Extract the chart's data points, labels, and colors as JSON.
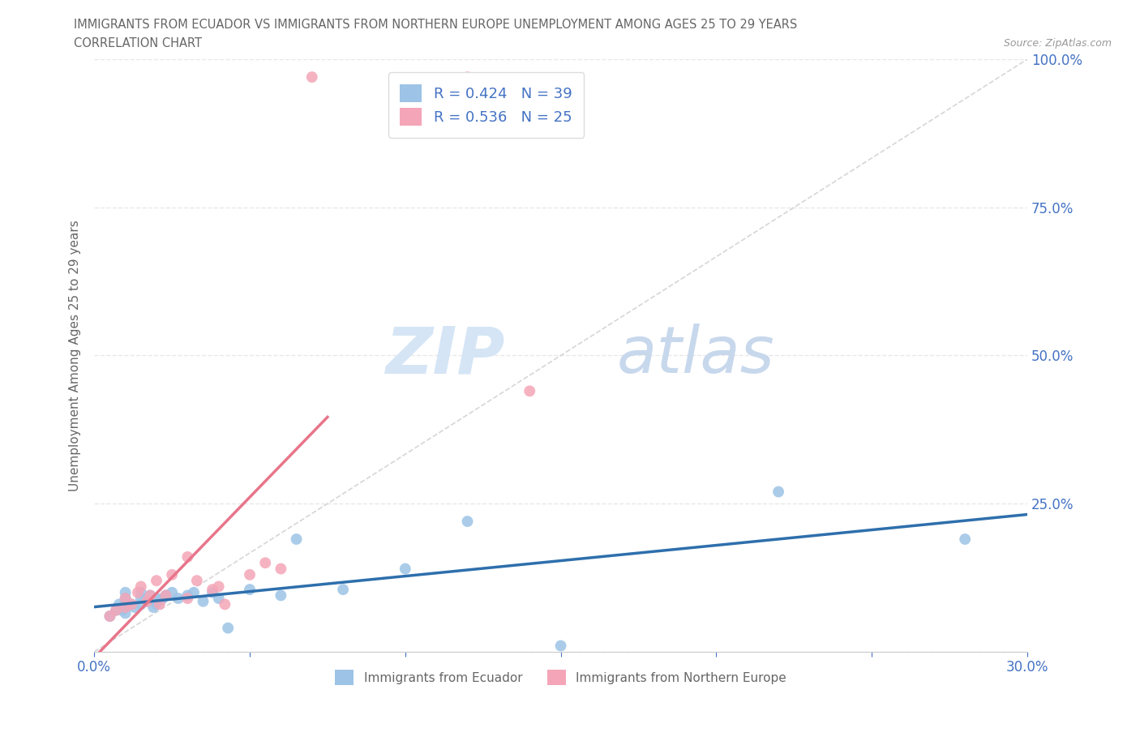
{
  "title_line1": "IMMIGRANTS FROM ECUADOR VS IMMIGRANTS FROM NORTHERN EUROPE UNEMPLOYMENT AMONG AGES 25 TO 29 YEARS",
  "title_line2": "CORRELATION CHART",
  "source": "Source: ZipAtlas.com",
  "ylabel": "Unemployment Among Ages 25 to 29 years",
  "xlim": [
    0.0,
    0.3
  ],
  "ylim": [
    0.0,
    1.0
  ],
  "xticks": [
    0.0,
    0.05,
    0.1,
    0.15,
    0.2,
    0.25,
    0.3
  ],
  "yticks": [
    0.0,
    0.25,
    0.5,
    0.75,
    1.0
  ],
  "xtick_labels_show": {
    "0.0": "0.0%",
    "0.30": "30.0%"
  },
  "ytick_labels_right": [
    "",
    "25.0%",
    "50.0%",
    "75.0%",
    "100.0%"
  ],
  "ecuador_color": "#9dc3e6",
  "northern_europe_color": "#f4a6b8",
  "ecuador_line_color": "#2e6fac",
  "northern_europe_line_color": "#e8758a",
  "diagonal_color": "#cccccc",
  "R_ecuador": 0.424,
  "N_ecuador": 39,
  "R_northern": 0.536,
  "N_northern": 25,
  "ecuador_label": "Immigrants from Ecuador",
  "northern_label": "Immigrants from Northern Europe",
  "ecuador_x": [
    0.005,
    0.007,
    0.008,
    0.009,
    0.01,
    0.01,
    0.01,
    0.01,
    0.01,
    0.012,
    0.013,
    0.015,
    0.015,
    0.015,
    0.017,
    0.018,
    0.019,
    0.02,
    0.02,
    0.021,
    0.022,
    0.023,
    0.025,
    0.027,
    0.03,
    0.032,
    0.035,
    0.038,
    0.04,
    0.043,
    0.05,
    0.06,
    0.065,
    0.08,
    0.1,
    0.12,
    0.15,
    0.22,
    0.28
  ],
  "ecuador_y": [
    0.06,
    0.07,
    0.08,
    0.07,
    0.08,
    0.09,
    0.1,
    0.075,
    0.065,
    0.08,
    0.075,
    0.08,
    0.09,
    0.1,
    0.085,
    0.095,
    0.075,
    0.08,
    0.09,
    0.085,
    0.09,
    0.095,
    0.1,
    0.09,
    0.095,
    0.1,
    0.085,
    0.1,
    0.09,
    0.04,
    0.105,
    0.095,
    0.19,
    0.105,
    0.14,
    0.22,
    0.01,
    0.27,
    0.19
  ],
  "northern_x": [
    0.005,
    0.007,
    0.01,
    0.01,
    0.012,
    0.014,
    0.015,
    0.017,
    0.018,
    0.02,
    0.021,
    0.023,
    0.025,
    0.03,
    0.03,
    0.033,
    0.038,
    0.04,
    0.042,
    0.05,
    0.055,
    0.06,
    0.07,
    0.12,
    0.14
  ],
  "northern_y": [
    0.06,
    0.07,
    0.075,
    0.09,
    0.08,
    0.1,
    0.11,
    0.085,
    0.095,
    0.12,
    0.08,
    0.095,
    0.13,
    0.09,
    0.16,
    0.12,
    0.105,
    0.11,
    0.08,
    0.13,
    0.15,
    0.14,
    0.97,
    0.97,
    0.44
  ],
  "watermark_zip": "ZIP",
  "watermark_atlas": "atlas",
  "watermark_color": "#d5e5f5",
  "background_color": "#ffffff",
  "grid_color": "#e8e8e8",
  "tick_color": "#4472c4",
  "title_color": "#666666",
  "label_color": "#666666",
  "legend_text_color": "#4472c4",
  "source_color": "#999999"
}
